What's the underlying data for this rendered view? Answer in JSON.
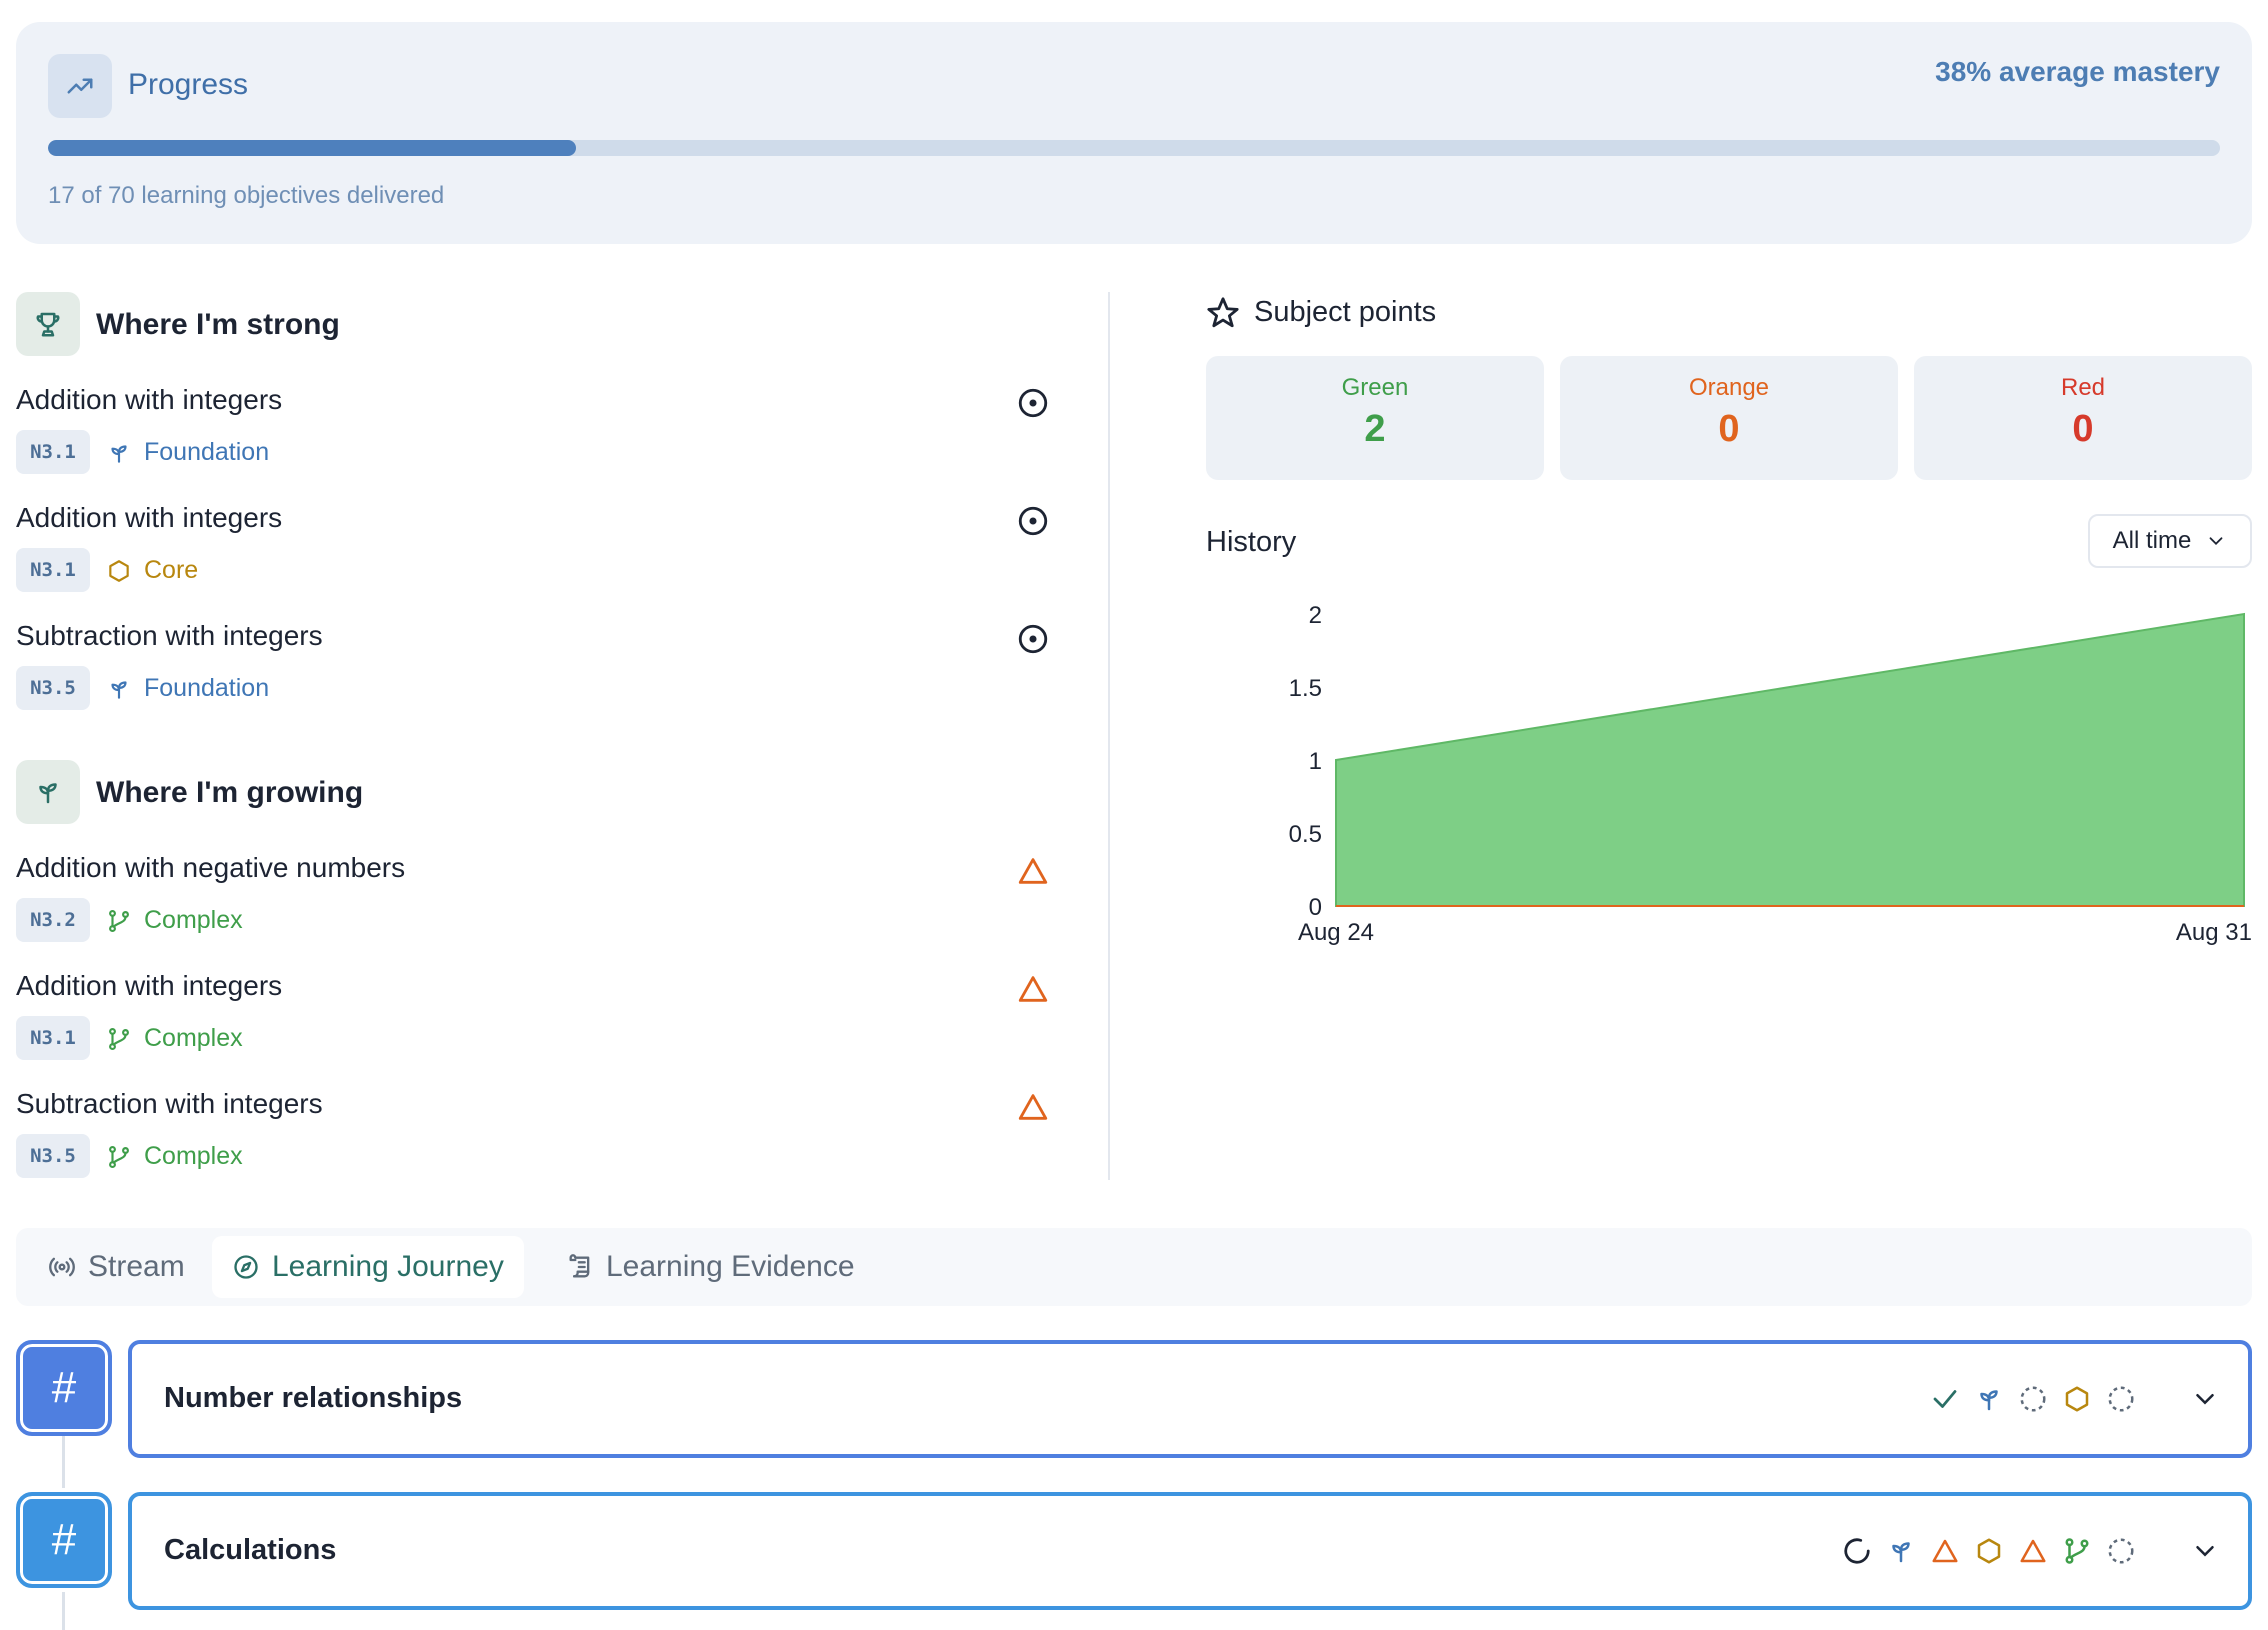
{
  "progress": {
    "title": "Progress",
    "mastery_label": "38% average mastery",
    "fraction_delivered": 0.243,
    "subtitle": "17 of 70 learning objectives delivered",
    "icon": "trending-up-icon"
  },
  "strong": {
    "title": "Where I'm strong",
    "icon": "trophy-icon",
    "items": [
      {
        "title": "Addition with integers",
        "code": "N3.1",
        "level": "Foundation",
        "level_icon": "sprout-icon",
        "status_icon": "target-icon"
      },
      {
        "title": "Addition with integers",
        "code": "N3.1",
        "level": "Core",
        "level_icon": "hexagon-icon",
        "status_icon": "target-icon"
      },
      {
        "title": "Subtraction with integers",
        "code": "N3.5",
        "level": "Foundation",
        "level_icon": "sprout-icon",
        "status_icon": "target-icon"
      }
    ]
  },
  "growing": {
    "title": "Where I'm growing",
    "icon": "sprout-icon",
    "items": [
      {
        "title": "Addition with negative numbers",
        "code": "N3.2",
        "level": "Complex",
        "level_icon": "branch-icon",
        "status_icon": "warning-triangle-icon"
      },
      {
        "title": "Addition with integers",
        "code": "N3.1",
        "level": "Complex",
        "level_icon": "branch-icon",
        "status_icon": "warning-triangle-icon"
      },
      {
        "title": "Subtraction with integers",
        "code": "N3.5",
        "level": "Complex",
        "level_icon": "branch-icon",
        "status_icon": "warning-triangle-icon"
      }
    ]
  },
  "subject_points": {
    "title": "Subject points",
    "icon": "star-icon",
    "boxes": [
      {
        "label": "Green",
        "value": "2",
        "color": "#3f9e4a"
      },
      {
        "label": "Orange",
        "value": "0",
        "color": "#e0641e"
      },
      {
        "label": "Red",
        "value": "0",
        "color": "#d63a2b"
      }
    ]
  },
  "history": {
    "title": "History",
    "range_select": "All time"
  },
  "chart_data": {
    "type": "area",
    "x": [
      "Aug 24",
      "Aug 31"
    ],
    "x_tick_labels": [
      "Aug 24",
      "Aug 31"
    ],
    "series": [
      {
        "values": [
          1,
          2
        ],
        "color": "#7ecf86"
      },
      {
        "values": [
          0,
          0
        ],
        "color": "#e0641e"
      }
    ],
    "y_ticks": [
      "0",
      "0.5",
      "1",
      "1.5",
      "2"
    ],
    "ylim": [
      0,
      2
    ],
    "title": "",
    "xlabel": "",
    "ylabel": ""
  },
  "tabs": [
    {
      "label": "Stream",
      "icon": "broadcast-icon",
      "active": false
    },
    {
      "label": "Learning Journey",
      "icon": "compass-icon",
      "active": true
    },
    {
      "label": "Learning Evidence",
      "icon": "scroll-icon",
      "active": false
    }
  ],
  "journey": [
    {
      "title": "Number relationships",
      "badge": "#",
      "badge_color": "#4f7fe0",
      "status_icons": [
        "check-icon",
        "sprout-icon",
        "dashed-circle-icon",
        "hexagon-icon",
        "dashed-circle-icon"
      ]
    },
    {
      "title": "Calculations",
      "badge": "#",
      "badge_color": "#3d94e0",
      "status_icons": [
        "loading-icon",
        "sprout-icon",
        "warning-triangle-icon",
        "hexagon-icon",
        "warning-triangle-icon",
        "branch-icon",
        "dashed-circle-icon"
      ]
    }
  ]
}
